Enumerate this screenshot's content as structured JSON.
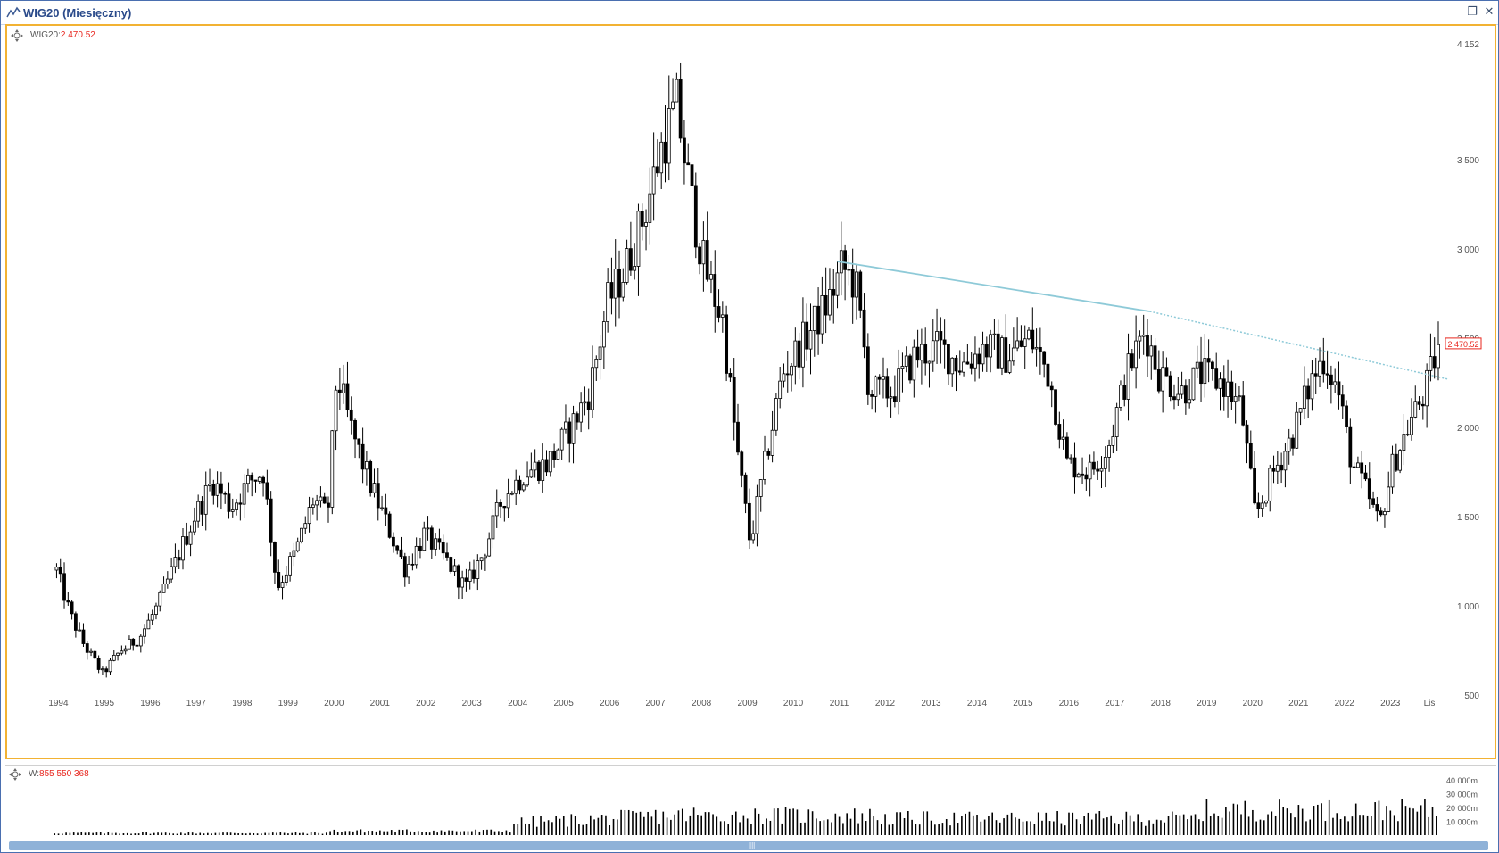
{
  "window": {
    "title": "WIG20 (Miesięczny)"
  },
  "main_legend": {
    "symbol": "WIG20:",
    "value": "2 470.52"
  },
  "volume_legend": {
    "symbol": "W:",
    "value": "855 550 368"
  },
  "colors": {
    "accent_border": "#f2b233",
    "trendline": "#8ecad8",
    "price_marker": "#e8261e",
    "candle": "#000000",
    "axis_text": "#555555"
  },
  "price_marker_label": "2 470.52",
  "chart_data": [
    {
      "type": "candlestick",
      "title": "WIG20",
      "x_tick_labels": [
        "1994",
        "1995",
        "1996",
        "1997",
        "1998",
        "1999",
        "2000",
        "2001",
        "2002",
        "2003",
        "2004",
        "2005",
        "2006",
        "2007",
        "2008",
        "2009",
        "2010",
        "2011",
        "2012",
        "2013",
        "2014",
        "2015",
        "2016",
        "2017",
        "2018",
        "2019",
        "2020",
        "2021",
        "2022",
        "2023",
        "Lis"
      ],
      "y_tick_labels": [
        "4 152",
        "3 500",
        "3 000",
        "2 500",
        "2 000",
        "1 500",
        "1 000",
        "500"
      ],
      "y_ticks": [
        4152,
        3500,
        3000,
        2500,
        2000,
        1500,
        1000,
        500
      ],
      "ylim": [
        500,
        4152
      ],
      "x_range_years": [
        1993.7,
        2024.2
      ],
      "last_value": 2470.52,
      "approx_close_path": [
        [
          1994.0,
          1200
        ],
        [
          1994.3,
          950
        ],
        [
          1994.6,
          780
        ],
        [
          1995.0,
          620
        ],
        [
          1995.4,
          750
        ],
        [
          1995.8,
          820
        ],
        [
          1996.2,
          1000
        ],
        [
          1996.6,
          1250
        ],
        [
          1997.0,
          1500
        ],
        [
          1997.4,
          1700
        ],
        [
          1997.8,
          1550
        ],
        [
          1998.2,
          1700
        ],
        [
          1998.5,
          1750
        ],
        [
          1998.8,
          1100
        ],
        [
          1999.2,
          1300
        ],
        [
          1999.6,
          1600
        ],
        [
          1999.9,
          1500
        ],
        [
          2000.1,
          2300
        ],
        [
          2000.4,
          2000
        ],
        [
          2000.8,
          1700
        ],
        [
          2001.2,
          1450
        ],
        [
          2001.6,
          1200
        ],
        [
          2002.0,
          1400
        ],
        [
          2002.5,
          1250
        ],
        [
          2002.9,
          1100
        ],
        [
          2003.3,
          1300
        ],
        [
          2003.7,
          1600
        ],
        [
          2004.2,
          1750
        ],
        [
          2004.7,
          1800
        ],
        [
          2005.2,
          2000
        ],
        [
          2005.6,
          2200
        ],
        [
          2006.0,
          2700
        ],
        [
          2006.4,
          2900
        ],
        [
          2006.8,
          3200
        ],
        [
          2007.2,
          3600
        ],
        [
          2007.5,
          3800
        ],
        [
          2007.8,
          3300
        ],
        [
          2008.1,
          2900
        ],
        [
          2008.5,
          2600
        ],
        [
          2008.8,
          1900
        ],
        [
          2009.1,
          1350
        ],
        [
          2009.5,
          1900
        ],
        [
          2009.8,
          2300
        ],
        [
          2010.3,
          2500
        ],
        [
          2010.8,
          2700
        ],
        [
          2011.1,
          2900
        ],
        [
          2011.4,
          2800
        ],
        [
          2011.7,
          2200
        ],
        [
          2012.2,
          2200
        ],
        [
          2012.7,
          2400
        ],
        [
          2013.2,
          2450
        ],
        [
          2013.7,
          2350
        ],
        [
          2014.2,
          2450
        ],
        [
          2014.7,
          2400
        ],
        [
          2015.2,
          2500
        ],
        [
          2015.6,
          2300
        ],
        [
          2016.0,
          1800
        ],
        [
          2016.5,
          1750
        ],
        [
          2016.9,
          1900
        ],
        [
          2017.3,
          2300
        ],
        [
          2017.7,
          2550
        ],
        [
          2018.0,
          2300
        ],
        [
          2018.5,
          2200
        ],
        [
          2018.9,
          2300
        ],
        [
          2019.4,
          2250
        ],
        [
          2019.8,
          2100
        ],
        [
          2020.1,
          1500
        ],
        [
          2020.5,
          1750
        ],
        [
          2020.9,
          1950
        ],
        [
          2021.3,
          2250
        ],
        [
          2021.6,
          2400
        ],
        [
          2021.9,
          2200
        ],
        [
          2022.2,
          1800
        ],
        [
          2022.5,
          1650
        ],
        [
          2022.8,
          1450
        ],
        [
          2023.1,
          1800
        ],
        [
          2023.5,
          2050
        ],
        [
          2023.8,
          2200
        ],
        [
          2024.1,
          2470.52
        ]
      ],
      "trendline": {
        "start": [
          2011.0,
          2930
        ],
        "mid": [
          2017.8,
          2650
        ],
        "end": [
          2024.3,
          2270
        ],
        "solid_until": 2017.8
      }
    },
    {
      "type": "bar",
      "title": "Volume",
      "y_tick_labels": [
        "40 000m",
        "30 000m",
        "20 000m",
        "10 000m"
      ],
      "y_ticks": [
        40000,
        30000,
        20000,
        10000
      ],
      "ylim": [
        0,
        45000
      ]
    }
  ]
}
